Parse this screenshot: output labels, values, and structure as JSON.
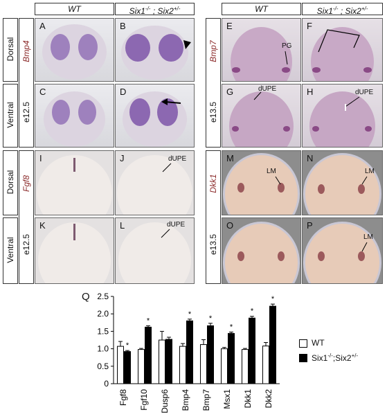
{
  "headers": {
    "wt_left": "WT",
    "mut_left_a": "Six1",
    "mut_left_a_sup": "-/-",
    "mut_left_sep": " ; Six2",
    "mut_left_b_sup": "+/-",
    "wt_right": "WT",
    "mut_right_a": "Six1",
    "mut_right_a_sup": "-/-",
    "mut_right_sep": " ; Six2",
    "mut_right_b_sup": "+/-"
  },
  "row_labels": {
    "dorsal_1": "Dorsal",
    "ventral_1": "Ventral",
    "dorsal_2": "Dorsal",
    "ventral_2": "Ventral",
    "stage_left_top": "e12.5",
    "stage_left_bottom": "e12.5",
    "stage_right_top": "e13.5",
    "stage_right_bottom": "e13.5",
    "gene_bmp4": "Bmp4",
    "gene_fgf8": "Fgf8",
    "gene_bmp7": "Bmp7",
    "gene_dkk1": "Dkk1"
  },
  "panels": {
    "A": "A",
    "B": "B",
    "C": "C",
    "D": "D",
    "E": "E",
    "F": "F",
    "G": "G",
    "H": "H",
    "I": "I",
    "J": "J",
    "K": "K",
    "L": "L",
    "M": "M",
    "N": "N",
    "O": "O",
    "P": "P"
  },
  "annotations": {
    "pg": "PG",
    "dupe_g": "dUPE",
    "dupe_h": "dUPE",
    "dupe_j": "dUPE",
    "dupe_l": "dUPE",
    "lm_m": "LM",
    "lm_n": "LM",
    "lm_p": "LM"
  },
  "chart_data": {
    "type": "bar",
    "panel_label": "Q",
    "categories": [
      "Fgf8",
      "Fgf10",
      "Dusp6",
      "Bmp4",
      "Bmp7",
      "Msx1",
      "Dkk1",
      "Dkk2"
    ],
    "series": [
      {
        "name": "WT",
        "color": "#ffffff",
        "values": [
          1.07,
          0.98,
          1.25,
          1.07,
          1.12,
          1.0,
          0.98,
          1.08
        ],
        "errors": [
          0.14,
          0.03,
          0.25,
          0.08,
          0.14,
          0.04,
          0.03,
          0.1
        ]
      },
      {
        "name": "Six1-/-;Six2+/-",
        "color": "#000000",
        "values": [
          0.92,
          1.62,
          1.27,
          1.8,
          1.66,
          1.44,
          1.88,
          2.22
        ],
        "errors": [
          0.03,
          0.04,
          0.06,
          0.05,
          0.07,
          0.04,
          0.05,
          0.06
        ]
      }
    ],
    "significant": [
      true,
      true,
      false,
      true,
      true,
      true,
      true,
      true
    ],
    "star": "*",
    "ylim": [
      0,
      2.5
    ],
    "yticks": [
      "0",
      "0.5",
      "1.0",
      "1.5",
      "2.0",
      "2.5"
    ],
    "legend": {
      "wt": "WT",
      "mut_a": "Six1",
      "mut_a_sup": "-/-",
      "mut_sep": ";Six2",
      "mut_b_sup": "+/-"
    },
    "legend_position": "right"
  }
}
